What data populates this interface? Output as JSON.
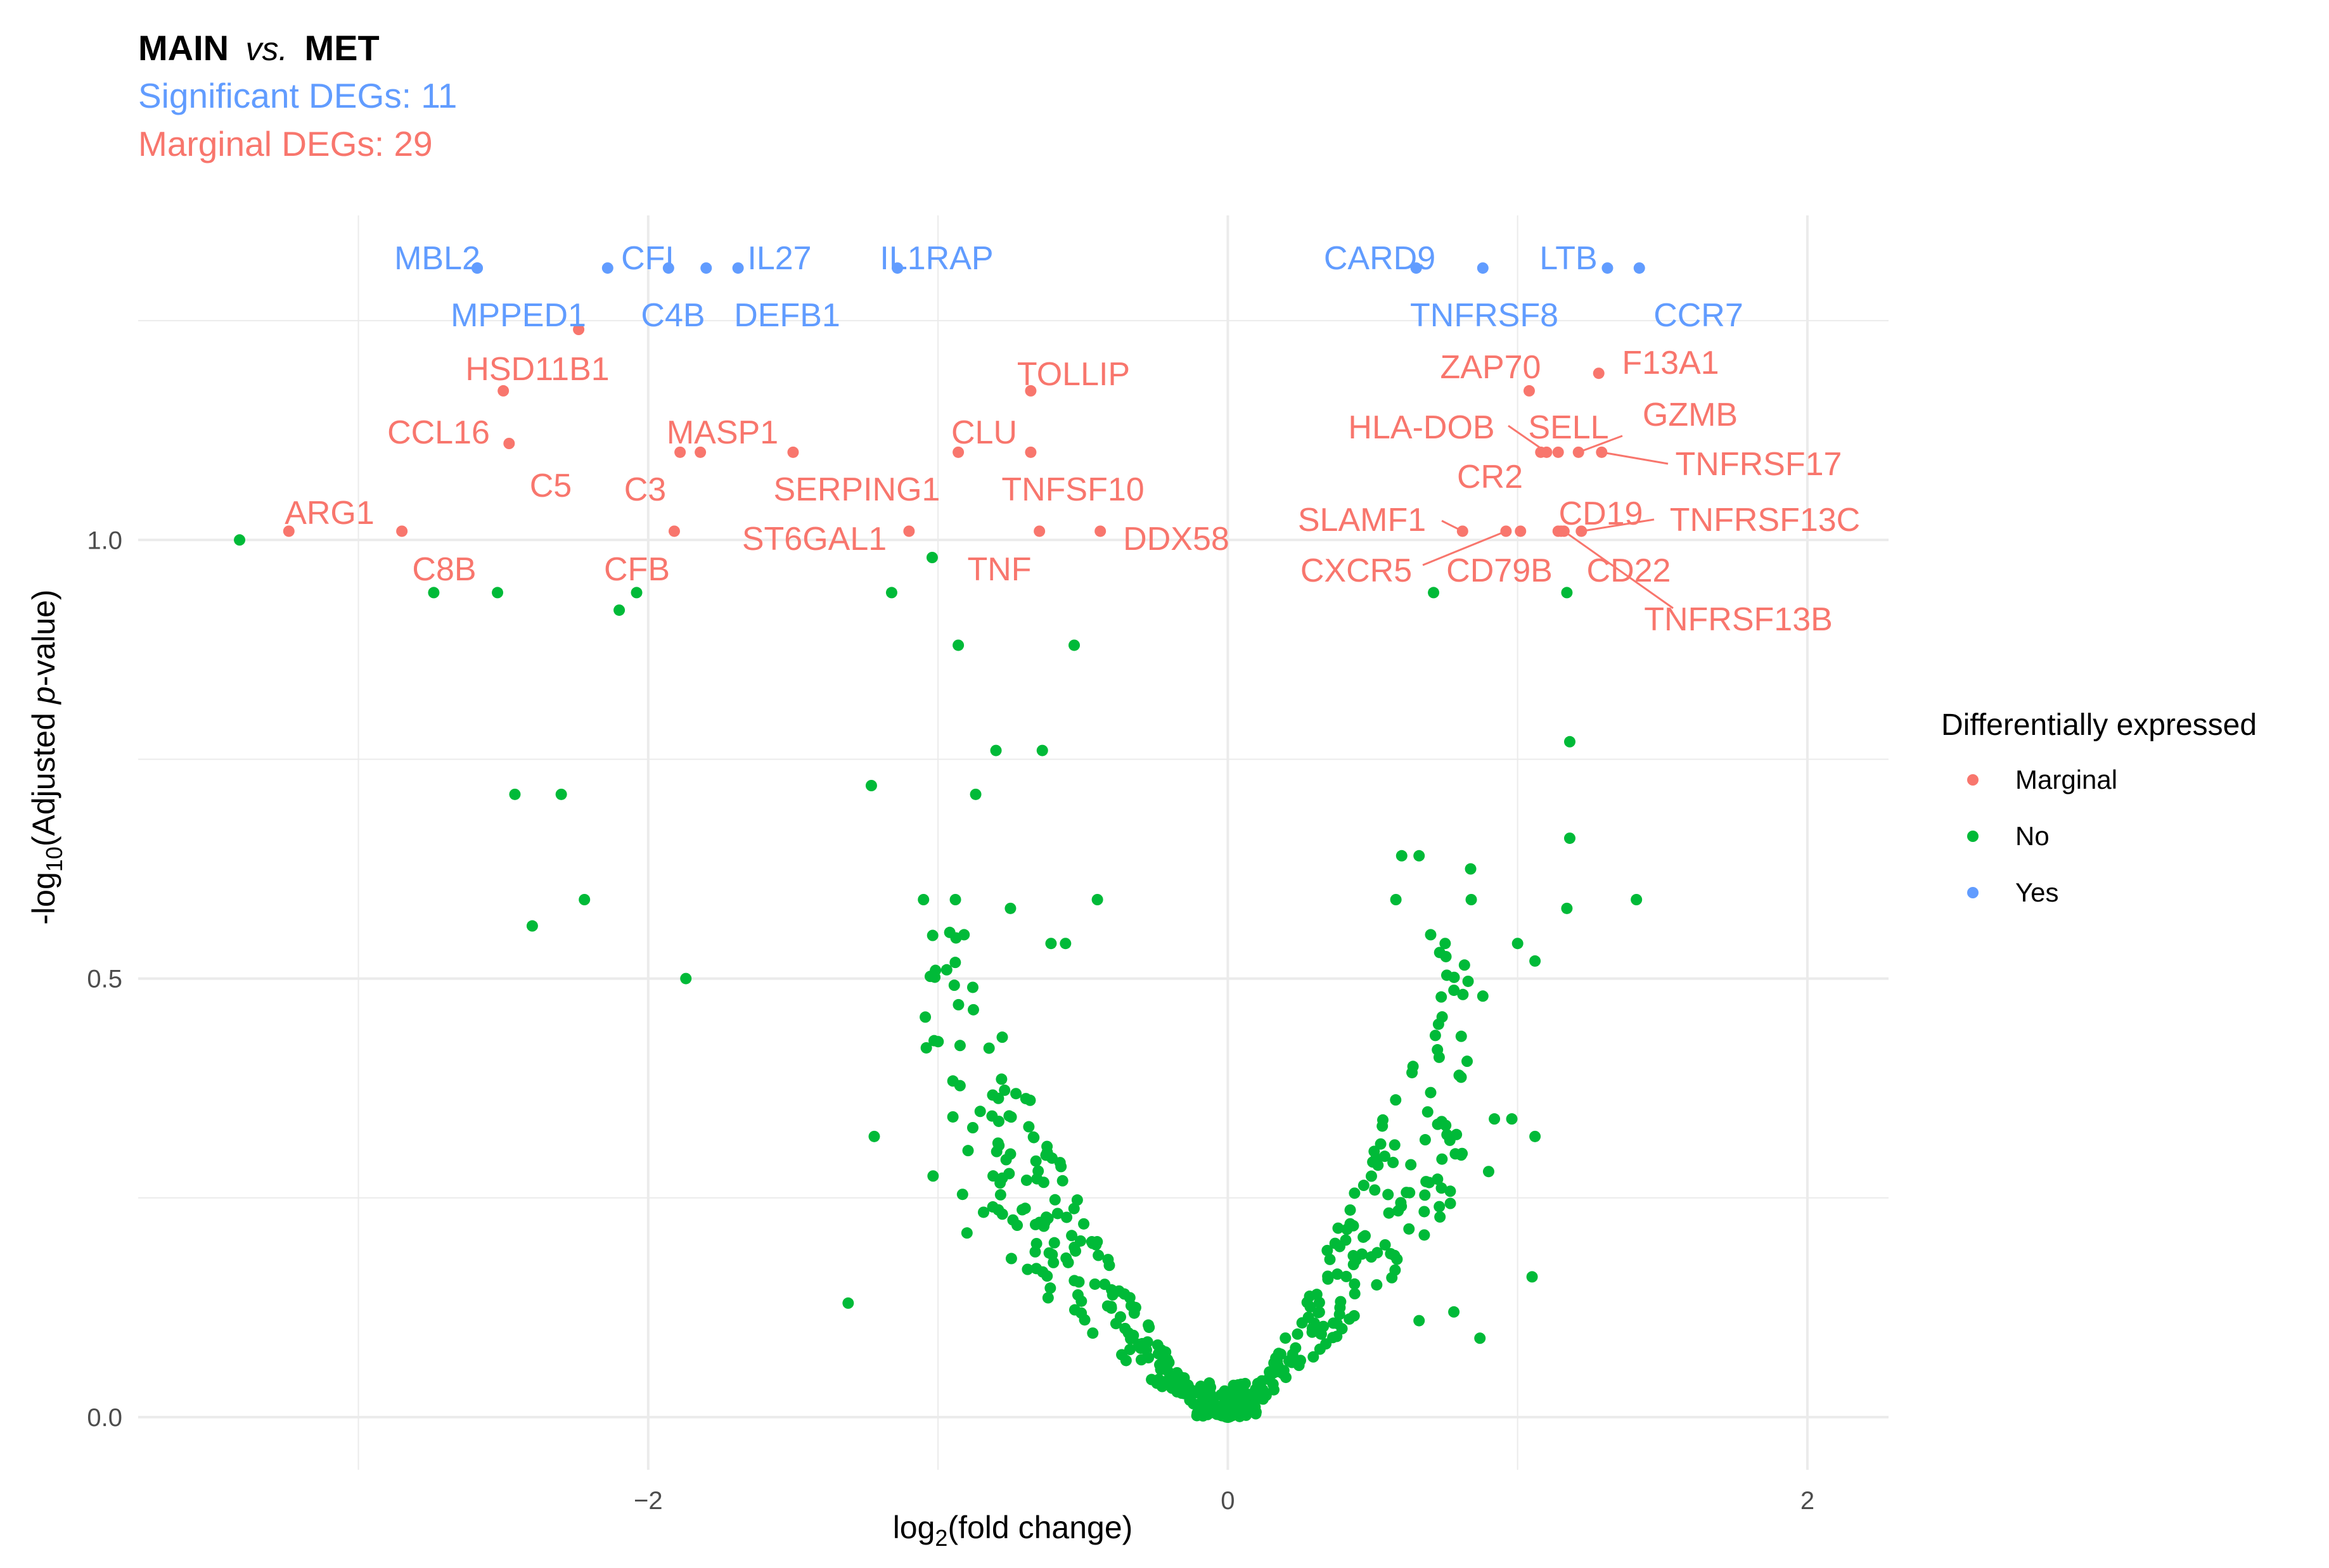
{
  "title": {
    "left": "MAIN",
    "vs": "vs.",
    "right": "MET"
  },
  "subtitles": {
    "significant": "Significant DEGs: 11",
    "marginal": "Marginal DEGs: 29"
  },
  "colors": {
    "marginal": "#F8766D",
    "no": "#00BA38",
    "yes": "#619CFF",
    "grid": "#ebebeb"
  },
  "axes": {
    "x_label": "log",
    "x_label_sub": "2",
    "x_label_rest": "(fold change)",
    "y_label": "-log",
    "y_label_sub": "10",
    "y_label_mid": "(Adjusted ",
    "y_label_p": "p",
    "y_label_rest": "-value)"
  },
  "legend": {
    "title": "Differentially expressed",
    "items": [
      {
        "key": "marginal",
        "label": "Marginal"
      },
      {
        "key": "no",
        "label": "No"
      },
      {
        "key": "yes",
        "label": "Yes"
      }
    ]
  },
  "chart_data": {
    "type": "scatter",
    "title": "MAIN vs. MET",
    "xlabel": "log2(fold change)",
    "ylabel": "-log10(Adjusted p-value)",
    "xlim": [
      -3.76,
      2.28
    ],
    "ylim": [
      -0.06,
      1.37
    ],
    "x_ticks": [
      -2,
      0,
      2
    ],
    "x_tick_labels": [
      "−2",
      "0",
      "2"
    ],
    "y_ticks": [
      0,
      0.5,
      1
    ],
    "y_tick_labels": [
      "0.0",
      "0.5",
      "1.0"
    ],
    "legend_position": "right",
    "labeled_points": [
      {
        "gene": "MBL2",
        "x": -2.59,
        "y": 1.31,
        "group": "yes"
      },
      {
        "gene": "MPPED1",
        "x": -2.59,
        "y": 1.31,
        "group": "yes"
      },
      {
        "gene": "CFI",
        "x": -2.14,
        "y": 1.31,
        "group": "yes"
      },
      {
        "gene": "C4B",
        "x": -1.93,
        "y": 1.31,
        "group": "yes"
      },
      {
        "gene": "IL27",
        "x": -1.8,
        "y": 1.31,
        "group": "yes"
      },
      {
        "gene": "DEFB1",
        "x": -1.69,
        "y": 1.31,
        "group": "yes"
      },
      {
        "gene": "IL1RAP",
        "x": -1.14,
        "y": 1.31,
        "group": "yes"
      },
      {
        "gene": "CARD9",
        "x": 0.65,
        "y": 1.31,
        "group": "yes"
      },
      {
        "gene": "TNFRSF8",
        "x": 0.88,
        "y": 1.31,
        "group": "yes"
      },
      {
        "gene": "LTB",
        "x": 1.31,
        "y": 1.31,
        "group": "yes"
      },
      {
        "gene": "CCR7",
        "x": 1.42,
        "y": 1.31,
        "group": "yes"
      },
      {
        "gene": "HSD11B1",
        "x": -2.24,
        "y": 1.24,
        "group": "marginal"
      },
      {
        "gene": "CCL16",
        "x": -2.5,
        "y": 1.17,
        "group": "marginal"
      },
      {
        "gene": "C5",
        "x": -2.48,
        "y": 1.11,
        "group": "marginal"
      },
      {
        "gene": "MASP1",
        "x": -1.89,
        "y": 1.1,
        "group": "marginal"
      },
      {
        "gene": "C3",
        "x": -1.82,
        "y": 1.1,
        "group": "marginal"
      },
      {
        "gene": "SERPING1",
        "x": -1.5,
        "y": 1.1,
        "group": "marginal"
      },
      {
        "gene": "TOLLIP",
        "x": -0.68,
        "y": 1.17,
        "group": "marginal"
      },
      {
        "gene": "CLU",
        "x": -0.93,
        "y": 1.1,
        "group": "marginal"
      },
      {
        "gene": "TNFSF10",
        "x": -0.68,
        "y": 1.1,
        "group": "marginal"
      },
      {
        "gene": "ARG1",
        "x": -3.24,
        "y": 1.01,
        "group": "marginal"
      },
      {
        "gene": "C8B",
        "x": -2.85,
        "y": 1.01,
        "group": "marginal"
      },
      {
        "gene": "CFB",
        "x": -1.91,
        "y": 1.01,
        "group": "marginal"
      },
      {
        "gene": "ST6GAL1",
        "x": -1.1,
        "y": 1.01,
        "group": "marginal"
      },
      {
        "gene": "TNF",
        "x": -0.65,
        "y": 1.01,
        "group": "marginal"
      },
      {
        "gene": "DDX58",
        "x": -0.44,
        "y": 1.01,
        "group": "marginal"
      },
      {
        "gene": "ZAP70",
        "x": 1.04,
        "y": 1.17,
        "group": "marginal"
      },
      {
        "gene": "F13A1",
        "x": 1.28,
        "y": 1.19,
        "group": "marginal"
      },
      {
        "gene": "HLA-DOB",
        "x": 1.1,
        "y": 1.1,
        "group": "marginal"
      },
      {
        "gene": "SELL",
        "x": 1.14,
        "y": 1.1,
        "group": "marginal"
      },
      {
        "gene": "CR2",
        "x": 1.08,
        "y": 1.1,
        "group": "marginal"
      },
      {
        "gene": "GZMB",
        "x": 1.21,
        "y": 1.1,
        "group": "marginal"
      },
      {
        "gene": "TNFRSF17",
        "x": 1.29,
        "y": 1.1,
        "group": "marginal"
      },
      {
        "gene": "SLAMF1",
        "x": 0.81,
        "y": 1.01,
        "group": "marginal"
      },
      {
        "gene": "CXCR5",
        "x": 0.96,
        "y": 1.01,
        "group": "marginal"
      },
      {
        "gene": "CD79B",
        "x": 1.01,
        "y": 1.01,
        "group": "marginal"
      },
      {
        "gene": "CD19",
        "x": 1.14,
        "y": 1.01,
        "group": "marginal"
      },
      {
        "gene": "TNFRSF13C",
        "x": 1.22,
        "y": 1.01,
        "group": "marginal"
      },
      {
        "gene": "CD22",
        "x": 1.15,
        "y": 1.01,
        "group": "marginal"
      },
      {
        "gene": "TNFRSF13B",
        "x": 1.16,
        "y": 1.01,
        "group": "marginal"
      }
    ],
    "unlabeled_points_no": [
      [
        -3.41,
        1.0
      ],
      [
        -2.74,
        0.94
      ],
      [
        -2.52,
        0.94
      ],
      [
        -2.1,
        0.92
      ],
      [
        -2.04,
        0.94
      ],
      [
        -1.02,
        0.98
      ],
      [
        -1.16,
        0.94
      ],
      [
        -0.93,
        0.88
      ],
      [
        -0.53,
        0.88
      ],
      [
        -2.46,
        0.71
      ],
      [
        -2.3,
        0.71
      ],
      [
        -2.22,
        0.59
      ],
      [
        -2.4,
        0.56
      ],
      [
        -1.87,
        0.5
      ],
      [
        -1.23,
        0.72
      ],
      [
        -0.87,
        0.71
      ],
      [
        -0.8,
        0.76
      ],
      [
        -0.64,
        0.76
      ],
      [
        -1.05,
        0.59
      ],
      [
        -0.94,
        0.59
      ],
      [
        -0.75,
        0.58
      ],
      [
        -0.45,
        0.59
      ],
      [
        -0.91,
        0.55
      ],
      [
        -0.61,
        0.54
      ],
      [
        -0.56,
        0.54
      ],
      [
        -0.97,
        0.51
      ],
      [
        -0.88,
        0.49
      ],
      [
        -1.31,
        0.13
      ],
      [
        -1.22,
        0.32
      ],
      [
        -0.88,
        0.33
      ],
      [
        -0.9,
        0.21
      ],
      [
        -0.75,
        0.3
      ],
      [
        0.6,
        0.64
      ],
      [
        0.66,
        0.64
      ],
      [
        0.58,
        0.59
      ],
      [
        0.84,
        0.59
      ],
      [
        0.7,
        0.55
      ],
      [
        0.75,
        0.54
      ],
      [
        1.0,
        0.54
      ],
      [
        1.06,
        0.52
      ],
      [
        0.7,
        0.37
      ],
      [
        0.88,
        0.48
      ],
      [
        0.92,
        0.34
      ],
      [
        0.98,
        0.34
      ],
      [
        0.9,
        0.28
      ],
      [
        0.73,
        0.24
      ],
      [
        1.06,
        0.32
      ],
      [
        1.05,
        0.16
      ],
      [
        0.66,
        0.11
      ],
      [
        0.78,
        0.12
      ],
      [
        0.87,
        0.09
      ],
      [
        0.71,
        0.94
      ],
      [
        1.18,
        0.77
      ],
      [
        1.18,
        0.66
      ],
      [
        1.17,
        0.58
      ],
      [
        1.41,
        0.59
      ],
      [
        1.17,
        0.94
      ]
    ],
    "volcano_branches_no": {
      "left": {
        "x_from": -1.05,
        "x_to": 0.0,
        "y_at_edge": 0.5,
        "count": 220
      },
      "right": {
        "x_from": 0.0,
        "x_to": 0.85,
        "y_at_edge": 0.5,
        "count": 200
      }
    }
  }
}
